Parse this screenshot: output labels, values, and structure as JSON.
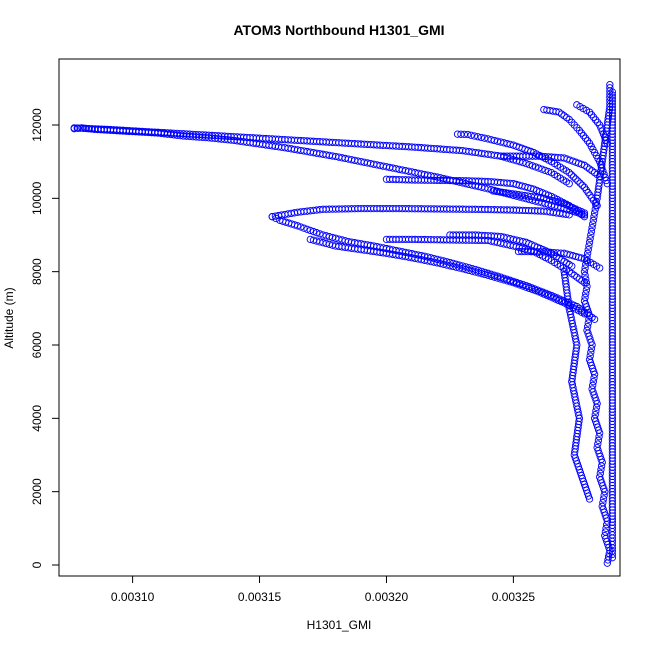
{
  "chart_data": {
    "type": "scatter",
    "title": "ATOM3 Northbound H1301_GMI",
    "xlabel": "H1301_GMI",
    "ylabel": "Altitude (m)",
    "xlim": [
      0.003071,
      0.003292
    ],
    "ylim": [
      -300,
      13800
    ],
    "xticks": [
      "0.00310",
      "0.00315",
      "0.00320",
      "0.00325"
    ],
    "xtick_values": [
      0.0031,
      0.00315,
      0.0032,
      0.00325
    ],
    "yticks": [
      "0",
      "2000",
      "4000",
      "6000",
      "8000",
      "10000",
      "12000"
    ],
    "ytick_values": [
      0,
      2000,
      4000,
      6000,
      8000,
      10000,
      12000
    ],
    "marker": "open-circle",
    "marker_color": "#0000ff",
    "grid": false,
    "series": [
      {
        "points": [
          [
            0.003287,
            50
          ],
          [
            0.003288,
            400
          ],
          [
            0.003286,
            800
          ],
          [
            0.003287,
            1200
          ],
          [
            0.003285,
            1600
          ],
          [
            0.003286,
            2000
          ],
          [
            0.003284,
            2400
          ],
          [
            0.003285,
            2800
          ],
          [
            0.003283,
            3200
          ],
          [
            0.003284,
            3600
          ],
          [
            0.003282,
            4000
          ],
          [
            0.003283,
            4400
          ],
          [
            0.003281,
            4800
          ],
          [
            0.003282,
            5200
          ],
          [
            0.00328,
            5600
          ],
          [
            0.003281,
            6000
          ],
          [
            0.003279,
            6400
          ],
          [
            0.00328,
            6800
          ],
          [
            0.003278,
            7200
          ],
          [
            0.003279,
            7600
          ],
          [
            0.003278,
            8000
          ],
          [
            0.003279,
            8400
          ],
          [
            0.00328,
            8800
          ],
          [
            0.003281,
            9200
          ],
          [
            0.003282,
            9600
          ],
          [
            0.003283,
            10000
          ],
          [
            0.003284,
            10500
          ],
          [
            0.003285,
            11000
          ],
          [
            0.003286,
            11500
          ],
          [
            0.003287,
            12000
          ],
          [
            0.003288,
            12500
          ],
          [
            0.003288,
            13100
          ]
        ]
      },
      {
        "points": [
          [
            0.003289,
            200
          ],
          [
            0.003289,
            1000
          ],
          [
            0.003289,
            2000
          ],
          [
            0.003289,
            3000
          ],
          [
            0.003289,
            4000
          ],
          [
            0.003289,
            5000
          ],
          [
            0.003289,
            6000
          ],
          [
            0.003289,
            7000
          ],
          [
            0.003289,
            8000
          ],
          [
            0.003289,
            9000
          ],
          [
            0.003289,
            10000
          ],
          [
            0.003289,
            11000
          ],
          [
            0.003289,
            12000
          ],
          [
            0.003289,
            12900
          ]
        ]
      },
      {
        "points": [
          [
            0.003077,
            11900
          ],
          [
            0.00308,
            11920
          ],
          [
            0.003085,
            11880
          ],
          [
            0.00309,
            11860
          ],
          [
            0.003095,
            11840
          ],
          [
            0.0031,
            11820
          ],
          [
            0.003105,
            11800
          ],
          [
            0.00311,
            11780
          ],
          [
            0.00312,
            11700
          ],
          [
            0.00313,
            11650
          ],
          [
            0.00314,
            11580
          ],
          [
            0.00315,
            11480
          ],
          [
            0.00316,
            11380
          ],
          [
            0.00317,
            11260
          ],
          [
            0.00318,
            11140
          ],
          [
            0.00319,
            11000
          ],
          [
            0.0032,
            10860
          ],
          [
            0.00321,
            10720
          ],
          [
            0.00322,
            10580
          ],
          [
            0.00323,
            10420
          ],
          [
            0.00324,
            10260
          ],
          [
            0.00325,
            10080
          ],
          [
            0.00326,
            9900
          ],
          [
            0.00327,
            9720
          ],
          [
            0.003278,
            9550
          ]
        ]
      },
      {
        "points": [
          [
            0.003077,
            11920
          ],
          [
            0.00309,
            11880
          ],
          [
            0.00311,
            11800
          ],
          [
            0.00313,
            11720
          ],
          [
            0.00315,
            11640
          ],
          [
            0.00317,
            11560
          ],
          [
            0.00319,
            11480
          ],
          [
            0.00321,
            11400
          ],
          [
            0.00323,
            11300
          ],
          [
            0.003245,
            11150
          ],
          [
            0.003255,
            10950
          ],
          [
            0.003265,
            10700
          ],
          [
            0.003272,
            10400
          ]
        ]
      },
      {
        "points": [
          [
            0.003155,
            9500
          ],
          [
            0.003158,
            9400
          ],
          [
            0.003165,
            9250
          ],
          [
            0.003175,
            9000
          ],
          [
            0.003185,
            8820
          ],
          [
            0.003195,
            8700
          ],
          [
            0.003205,
            8560
          ],
          [
            0.003215,
            8420
          ],
          [
            0.003225,
            8250
          ],
          [
            0.003235,
            8060
          ],
          [
            0.003245,
            7850
          ],
          [
            0.003255,
            7620
          ],
          [
            0.003265,
            7350
          ],
          [
            0.003275,
            7050
          ],
          [
            0.003282,
            6700
          ]
        ]
      },
      {
        "points": [
          [
            0.003155,
            9500
          ],
          [
            0.003165,
            9620
          ],
          [
            0.003175,
            9700
          ],
          [
            0.00319,
            9720
          ],
          [
            0.003205,
            9720
          ],
          [
            0.00322,
            9710
          ],
          [
            0.003235,
            9700
          ],
          [
            0.00325,
            9680
          ],
          [
            0.003262,
            9650
          ],
          [
            0.003272,
            9550
          ]
        ]
      },
      {
        "points": [
          [
            0.00317,
            8880
          ],
          [
            0.00318,
            8700
          ],
          [
            0.00319,
            8600
          ],
          [
            0.0032,
            8500
          ],
          [
            0.00321,
            8380
          ],
          [
            0.00322,
            8240
          ],
          [
            0.00323,
            8080
          ],
          [
            0.00324,
            7900
          ],
          [
            0.00325,
            7700
          ],
          [
            0.00326,
            7450
          ],
          [
            0.00327,
            7150
          ],
          [
            0.003278,
            6850
          ]
        ]
      },
      {
        "points": [
          [
            0.0032,
            10520
          ],
          [
            0.00321,
            10500
          ],
          [
            0.00322,
            10490
          ],
          [
            0.00323,
            10480
          ],
          [
            0.00324,
            10460
          ],
          [
            0.00325,
            10400
          ],
          [
            0.003258,
            10250
          ],
          [
            0.003265,
            10050
          ],
          [
            0.003272,
            9800
          ],
          [
            0.003278,
            9500
          ]
        ]
      },
      {
        "points": [
          [
            0.0032,
            8880
          ],
          [
            0.00321,
            8880
          ],
          [
            0.00322,
            8870
          ],
          [
            0.00323,
            8860
          ],
          [
            0.00324,
            8850
          ],
          [
            0.00325,
            8700
          ],
          [
            0.003258,
            8550
          ],
          [
            0.003265,
            8300
          ],
          [
            0.003272,
            8000
          ],
          [
            0.003278,
            7700
          ]
        ]
      },
      {
        "points": [
          [
            0.003228,
            11750
          ],
          [
            0.003232,
            11740
          ],
          [
            0.00324,
            11620
          ],
          [
            0.00325,
            11450
          ],
          [
            0.003258,
            11250
          ],
          [
            0.003265,
            11000
          ],
          [
            0.003272,
            10700
          ],
          [
            0.003278,
            10300
          ],
          [
            0.003283,
            9800
          ]
        ]
      },
      {
        "points": [
          [
            0.003245,
            11150
          ],
          [
            0.00326,
            11150
          ],
          [
            0.00327,
            11100
          ],
          [
            0.003278,
            10900
          ],
          [
            0.003284,
            10600
          ]
        ]
      },
      {
        "points": [
          [
            0.003262,
            12420
          ],
          [
            0.003268,
            12350
          ],
          [
            0.003272,
            12150
          ],
          [
            0.003276,
            11850
          ],
          [
            0.00328,
            11500
          ],
          [
            0.003284,
            11000
          ],
          [
            0.003287,
            10400
          ]
        ]
      },
      {
        "points": [
          [
            0.003242,
            10200
          ],
          [
            0.003252,
            10100
          ],
          [
            0.003262,
            10000
          ],
          [
            0.00327,
            9850
          ],
          [
            0.003278,
            9600
          ]
        ]
      },
      {
        "points": [
          [
            0.003252,
            8550
          ],
          [
            0.003262,
            8540
          ],
          [
            0.00327,
            8500
          ],
          [
            0.003278,
            8350
          ],
          [
            0.003284,
            8100
          ]
        ]
      },
      {
        "points": [
          [
            0.003225,
            9000
          ],
          [
            0.003235,
            9000
          ],
          [
            0.003245,
            8960
          ],
          [
            0.003255,
            8800
          ],
          [
            0.003265,
            8500
          ],
          [
            0.003273,
            8150
          ]
        ]
      },
      {
        "points": [
          [
            0.003275,
            12550
          ],
          [
            0.00328,
            12350
          ],
          [
            0.003284,
            12000
          ],
          [
            0.003287,
            11500
          ]
        ]
      },
      {
        "points": [
          [
            0.00327,
            8000
          ],
          [
            0.003272,
            7000
          ],
          [
            0.003275,
            6000
          ],
          [
            0.003273,
            5000
          ],
          [
            0.003276,
            4000
          ],
          [
            0.003274,
            3000
          ],
          [
            0.003278,
            2200
          ],
          [
            0.00328,
            1800
          ]
        ]
      }
    ]
  }
}
